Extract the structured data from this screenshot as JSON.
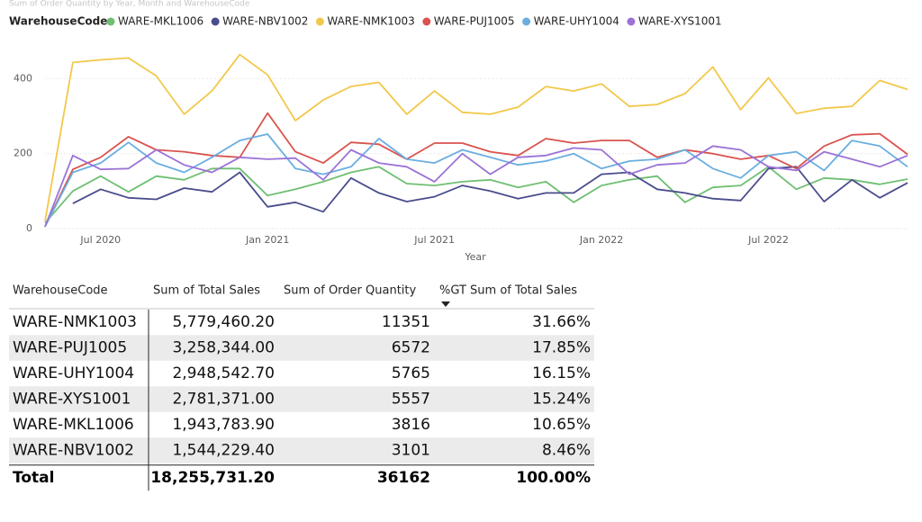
{
  "chart_data": {
    "type": "line",
    "subtitle": "Sum of Order Quantity by Year, Month and WarehouseCode",
    "legend_title": "WarehouseCode",
    "x_label": "Year",
    "x": [
      "2020-05",
      "2020-06",
      "2020-07",
      "2020-08",
      "2020-09",
      "2020-10",
      "2020-11",
      "2020-12",
      "2021-01",
      "2021-02",
      "2021-03",
      "2021-04",
      "2021-05",
      "2021-06",
      "2021-07",
      "2021-08",
      "2021-09",
      "2021-10",
      "2021-11",
      "2021-12",
      "2022-01",
      "2022-02",
      "2022-03",
      "2022-04",
      "2022-05",
      "2022-06",
      "2022-07",
      "2022-08",
      "2022-09",
      "2022-10",
      "2022-11",
      "2022-12"
    ],
    "xticks": [
      {
        "value": "2020-07",
        "label": "Jul 2020"
      },
      {
        "value": "2021-01",
        "label": "Jan 2021"
      },
      {
        "value": "2021-07",
        "label": "Jul 2021"
      },
      {
        "value": "2022-01",
        "label": "Jan 2022"
      },
      {
        "value": "2022-07",
        "label": "Jul 2022"
      }
    ],
    "ylim": [
      0,
      480
    ],
    "yticks": [
      0,
      200,
      400
    ],
    "grid": true,
    "legend": "top-left",
    "series": [
      {
        "name": "WARE-MKL1006",
        "color": "#6fbf73",
        "values": [
          15,
          100,
          140,
          98,
          140,
          130,
          160,
          160,
          88,
          105,
          125,
          150,
          165,
          120,
          115,
          125,
          130,
          110,
          125,
          70,
          115,
          130,
          140,
          70,
          110,
          115,
          165,
          105,
          135,
          130,
          118,
          132
        ]
      },
      {
        "name": "WARE-NBV1002",
        "color": "#4a4d8c",
        "values": [
          null,
          67,
          105,
          82,
          78,
          108,
          98,
          150,
          58,
          70,
          45,
          135,
          95,
          72,
          85,
          115,
          100,
          80,
          95,
          95,
          145,
          150,
          105,
          95,
          80,
          75,
          160,
          165,
          72,
          130,
          82,
          122
        ]
      },
      {
        "name": "WARE-NMK1003",
        "color": "#f2c84b",
        "values": [
          20,
          443,
          450,
          455,
          407,
          305,
          367,
          464,
          410,
          288,
          343,
          379,
          390,
          305,
          367,
          310,
          305,
          324,
          379,
          367,
          386,
          326,
          331,
          360,
          431,
          317,
          402,
          307,
          321,
          326,
          395,
          371
        ]
      },
      {
        "name": "WARE-PUJ1005",
        "color": "#d9534f",
        "values": [
          5,
          158,
          190,
          245,
          210,
          205,
          195,
          190,
          308,
          205,
          175,
          230,
          225,
          185,
          228,
          228,
          205,
          195,
          240,
          228,
          235,
          235,
          190,
          210,
          200,
          185,
          195,
          160,
          220,
          250,
          253,
          198
        ]
      },
      {
        "name": "WARE-UHY1004",
        "color": "#6aaee0",
        "values": [
          5,
          150,
          175,
          230,
          175,
          150,
          190,
          235,
          252,
          160,
          145,
          165,
          240,
          185,
          175,
          210,
          190,
          170,
          180,
          200,
          160,
          180,
          185,
          210,
          160,
          135,
          195,
          205,
          155,
          235,
          220,
          165
        ]
      },
      {
        "name": "WARE-XYS1001",
        "color": "#9b72d6",
        "values": [
          5,
          195,
          158,
          160,
          210,
          170,
          150,
          190,
          185,
          188,
          130,
          210,
          175,
          165,
          125,
          200,
          145,
          190,
          195,
          215,
          210,
          145,
          170,
          175,
          220,
          210,
          165,
          155,
          205,
          185,
          165,
          195
        ]
      }
    ]
  },
  "table": {
    "columns": [
      "WarehouseCode",
      "Sum of Total Sales",
      "Sum of Order Quantity",
      "%GT Sum of Total Sales"
    ],
    "rows": [
      [
        "WARE-NMK1003",
        "5,779,460.20",
        "11351",
        "31.66%"
      ],
      [
        "WARE-PUJ1005",
        "3,258,344.00",
        "6572",
        "17.85%"
      ],
      [
        "WARE-UHY1004",
        "2,948,542.70",
        "5765",
        "16.15%"
      ],
      [
        "WARE-XYS1001",
        "2,781,371.00",
        "5557",
        "15.24%"
      ],
      [
        "WARE-MKL1006",
        "1,943,783.90",
        "3816",
        "10.65%"
      ],
      [
        "WARE-NBV1002",
        "1,544,229.40",
        "3101",
        "8.46%"
      ]
    ],
    "total": [
      "Total",
      "18,255,731.20",
      "36162",
      "100.00%"
    ]
  }
}
